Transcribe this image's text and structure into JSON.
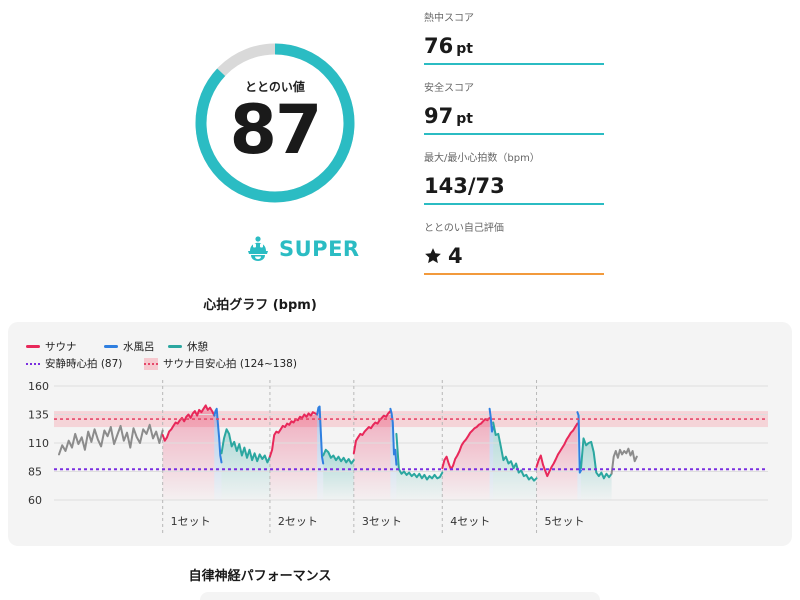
{
  "score": {
    "caption": "ととのい値",
    "value": "87",
    "fraction": 0.87,
    "ring_color": "#2bbcc3",
    "track_color": "#d9d9d9"
  },
  "level": {
    "icon": "sauna-hat-icon",
    "label": "SUPER",
    "color": "#2bbcc3"
  },
  "stats": [
    {
      "label": "熱中スコア",
      "value": "76",
      "unit": "pt"
    },
    {
      "label": "安全スコア",
      "value": "97",
      "unit": "pt"
    },
    {
      "label": "最大/最小心拍数（bpm）",
      "value": "143/73",
      "unit": ""
    },
    {
      "label": "ととのい自己評価",
      "value": "4",
      "unit": "",
      "icon": "star-icon"
    }
  ],
  "heart_rate_title": "心拍グラフ (bpm)",
  "autonomic_title": "自律神経パフォーマンス",
  "colors": {
    "sauna": "#e8285a",
    "water": "#2f7fe0",
    "rest": "#2ba7a0",
    "resting_line": "#7a2ee0",
    "target": "#e5486a"
  },
  "chart_data": {
    "type": "line",
    "legend": {
      "sauna": "サウナ",
      "water": "水風呂",
      "rest": "休憩",
      "resting": "安静時心拍 (87)",
      "target": "サウナ目安心拍 (124~138)"
    },
    "yticks": [
      "160",
      "135",
      "110",
      "85",
      "60"
    ],
    "ylim": [
      60,
      160
    ],
    "resting_hr": 87,
    "target_band": [
      124,
      138
    ],
    "set_labels": [
      "1セット",
      "2セット",
      "3セット",
      "4セット",
      "5セット"
    ],
    "pre_rest": [
      100,
      108,
      103,
      112,
      106,
      118,
      109,
      115,
      104,
      120,
      111,
      122,
      113,
      107,
      121,
      116,
      124,
      109,
      117,
      125,
      112,
      119,
      106,
      123,
      115,
      110,
      122,
      118,
      126,
      114,
      120,
      110,
      121
    ],
    "sets": [
      {
        "sauna": [
          117,
          112,
          115,
          120,
          122,
          125,
          128,
          127,
          130,
          132,
          129,
          133,
          135,
          132,
          136,
          138,
          134,
          139,
          137,
          140,
          143,
          139,
          141,
          138,
          134
        ],
        "water": [
          134,
          138,
          140,
          127,
          115,
          99,
          93
        ],
        "rest": [
          101,
          114,
          122,
          118,
          107,
          111,
          103,
          109,
          99,
          106,
          97,
          104,
          95,
          101,
          94,
          100,
          96,
          99,
          93,
          98
        ]
      },
      {
        "sauna": [
          98,
          104,
          117,
          120,
          119,
          122,
          125,
          124,
          127,
          126,
          129,
          128,
          131,
          130,
          133,
          132,
          135,
          133,
          136,
          134,
          137,
          136,
          135
        ],
        "water": [
          135,
          141,
          142,
          120,
          98,
          92
        ],
        "rest": [
          99,
          104,
          102,
          97,
          99,
          95,
          98,
          94,
          97,
          93,
          96,
          92,
          95
        ]
      },
      {
        "sauna": [
          101,
          112,
          115,
          118,
          117,
          120,
          122,
          124,
          123,
          126,
          128,
          127,
          130,
          132,
          134,
          133,
          136,
          138
        ],
        "water": [
          140,
          136,
          128,
          100,
          104,
          91
        ],
        "rest": [
          118,
          87,
          83,
          85,
          82,
          84,
          81,
          83,
          80,
          83,
          79,
          82,
          78,
          81,
          79,
          82,
          79,
          80,
          84
        ]
      },
      {
        "sauna": [
          88,
          95,
          98,
          92,
          87,
          90,
          96,
          99,
          103,
          108,
          111,
          113,
          116,
          119,
          121,
          123,
          124,
          126,
          127,
          129,
          131,
          130,
          132
        ],
        "water": [
          140,
          132,
          120,
          124
        ],
        "rest": [
          128,
          117,
          118,
          107,
          95,
          98,
          92,
          94,
          88,
          92,
          84,
          86,
          81,
          82,
          78,
          80,
          77,
          79
        ]
      },
      {
        "sauna": [
          89,
          95,
          99,
          91,
          86,
          81,
          85,
          89,
          92,
          96,
          100,
          103,
          106,
          109,
          113,
          116,
          119,
          121,
          124,
          127
        ],
        "water": [
          137,
          134,
          84,
          86
        ],
        "rest": [
          88,
          114,
          108,
          110,
          111,
          102,
          84,
          81,
          84,
          79,
          83,
          80,
          83
        ]
      }
    ],
    "post_rest": [
      83,
      98,
      103,
      97,
      104,
      100,
      103,
      101,
      105,
      99,
      103,
      94,
      98
    ]
  }
}
